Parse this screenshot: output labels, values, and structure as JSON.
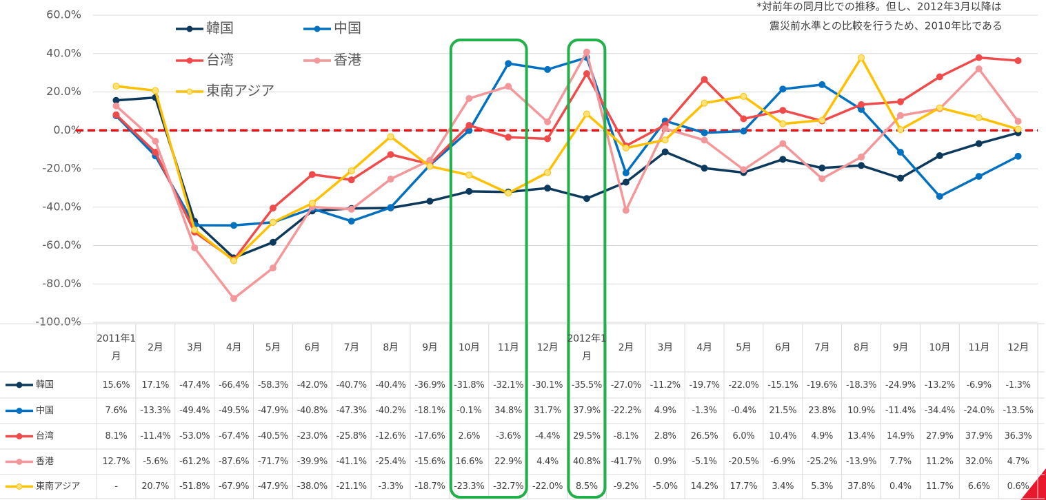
{
  "chart_data": {
    "type": "line",
    "annotations": [
      "*対前年の同月比での推移。但し、2012年3月以降は",
      "震災前水準との比較を行うため、2010年比である"
    ],
    "categories": [
      "2011年1月",
      "2月",
      "3月",
      "4月",
      "5月",
      "6月",
      "7月",
      "8月",
      "9月",
      "10月",
      "11月",
      "12月",
      "2012年1月",
      "2月",
      "3月",
      "4月",
      "5月",
      "6月",
      "7月",
      "8月",
      "9月",
      "10月",
      "11月",
      "12月"
    ],
    "ylim": [
      -100,
      60
    ],
    "yticks": [
      {
        "value": -100,
        "label": "-100.0%"
      },
      {
        "value": -80,
        "label": "-80.0%"
      },
      {
        "value": -60,
        "label": "-60.0%"
      },
      {
        "value": -40,
        "label": "-40.0%"
      },
      {
        "value": -20,
        "label": "-20.0%"
      },
      {
        "value": 0,
        "label": "0.0%"
      },
      {
        "value": 20,
        "label": "20.0%"
      },
      {
        "value": 40,
        "label": "40.0%"
      },
      {
        "value": 60,
        "label": "60.0%"
      }
    ],
    "grid": true,
    "reference_line": {
      "value": 0,
      "color": "#e81010"
    },
    "series": [
      {
        "name": "韓国",
        "color": "#0d3a5c",
        "values": [
          15.6,
          17.1,
          -47.4,
          -66.4,
          -58.3,
          -42.0,
          -40.7,
          -40.4,
          -36.9,
          -31.8,
          -32.1,
          -30.1,
          -35.5,
          -27.0,
          -11.2,
          -19.7,
          -22.0,
          -15.1,
          -19.6,
          -18.3,
          -24.9,
          -13.2,
          -6.9,
          -1.3
        ],
        "value_labels": [
          "15.6%",
          "17.1%",
          "-47.4%",
          "-66.4%",
          "-58.3%",
          "-42.0%",
          "-40.7%",
          "-40.4%",
          "-36.9%",
          "-31.8%",
          "-32.1%",
          "-30.1%",
          "-35.5%",
          "-27.0%",
          "-11.2%",
          "-19.7%",
          "-22.0%",
          "-15.1%",
          "-19.6%",
          "-18.3%",
          "-24.9%",
          "-13.2%",
          "-6.9%",
          "-1.3%"
        ]
      },
      {
        "name": "中国",
        "color": "#0070c0",
        "values": [
          7.6,
          -13.3,
          -49.4,
          -49.5,
          -47.9,
          -40.8,
          -47.3,
          -40.2,
          -18.1,
          -0.1,
          34.8,
          31.7,
          37.9,
          -22.2,
          4.9,
          -1.3,
          -0.4,
          21.5,
          23.8,
          10.9,
          -11.4,
          -34.4,
          -24.0,
          -13.5
        ],
        "value_labels": [
          "7.6%",
          "-13.3%",
          "-49.4%",
          "-49.5%",
          "-47.9%",
          "-40.8%",
          "-47.3%",
          "-40.2%",
          "-18.1%",
          "-0.1%",
          "34.8%",
          "31.7%",
          "37.9%",
          "-22.2%",
          "4.9%",
          "-1.3%",
          "-0.4%",
          "21.5%",
          "23.8%",
          "10.9%",
          "-11.4%",
          "-34.4%",
          "-24.0%",
          "-13.5%"
        ]
      },
      {
        "name": "台湾",
        "color": "#f04a4a",
        "values": [
          8.1,
          -11.4,
          -53.0,
          -67.4,
          -40.5,
          -23.0,
          -25.8,
          -12.6,
          -17.6,
          2.6,
          -3.6,
          -4.4,
          29.5,
          -8.1,
          2.8,
          26.5,
          6.0,
          10.4,
          4.9,
          13.4,
          14.9,
          27.9,
          37.9,
          36.3
        ],
        "value_labels": [
          "8.1%",
          "-11.4%",
          "-53.0%",
          "-67.4%",
          "-40.5%",
          "-23.0%",
          "-25.8%",
          "-12.6%",
          "-17.6%",
          "2.6%",
          "-3.6%",
          "-4.4%",
          "29.5%",
          "-8.1%",
          "2.8%",
          "26.5%",
          "6.0%",
          "10.4%",
          "4.9%",
          "13.4%",
          "14.9%",
          "27.9%",
          "37.9%",
          "36.3%"
        ]
      },
      {
        "name": "香港",
        "color": "#f4979a",
        "values": [
          12.7,
          -5.6,
          -61.2,
          -87.6,
          -71.7,
          -39.9,
          -41.1,
          -25.4,
          -15.6,
          16.6,
          22.9,
          4.4,
          40.8,
          -41.7,
          0.9,
          -5.1,
          -20.5,
          -6.9,
          -25.2,
          -13.9,
          7.7,
          11.2,
          32.0,
          4.7
        ],
        "value_labels": [
          "12.7%",
          "-5.6%",
          "-61.2%",
          "-87.6%",
          "-71.7%",
          "-39.9%",
          "-41.1%",
          "-25.4%",
          "-15.6%",
          "16.6%",
          "22.9%",
          "4.4%",
          "40.8%",
          "-41.7%",
          "0.9%",
          "-5.1%",
          "-20.5%",
          "-6.9%",
          "-25.2%",
          "-13.9%",
          "7.7%",
          "11.2%",
          "32.0%",
          "4.7%"
        ]
      },
      {
        "name": "東南アジア",
        "color": "#ffc000",
        "values": [
          23.0,
          20.7,
          -51.8,
          -67.9,
          -47.9,
          -38.0,
          -21.1,
          -3.3,
          -18.7,
          -23.3,
          -32.7,
          -22.0,
          8.5,
          -9.2,
          -5.0,
          14.2,
          17.7,
          3.4,
          5.3,
          37.8,
          0.4,
          11.7,
          6.6,
          0.6
        ],
        "value_labels": [
          "-",
          "20.7%",
          "-51.8%",
          "-67.9%",
          "-47.9%",
          "-38.0%",
          "-21.1%",
          "-3.3%",
          "-18.7%",
          "-23.3%",
          "-32.7%",
          "-22.0%",
          "8.5%",
          "-9.2%",
          "-5.0%",
          "14.2%",
          "17.7%",
          "3.4%",
          "5.3%",
          "37.8%",
          "0.4%",
          "11.7%",
          "6.6%",
          "0.6%"
        ]
      }
    ]
  }
}
